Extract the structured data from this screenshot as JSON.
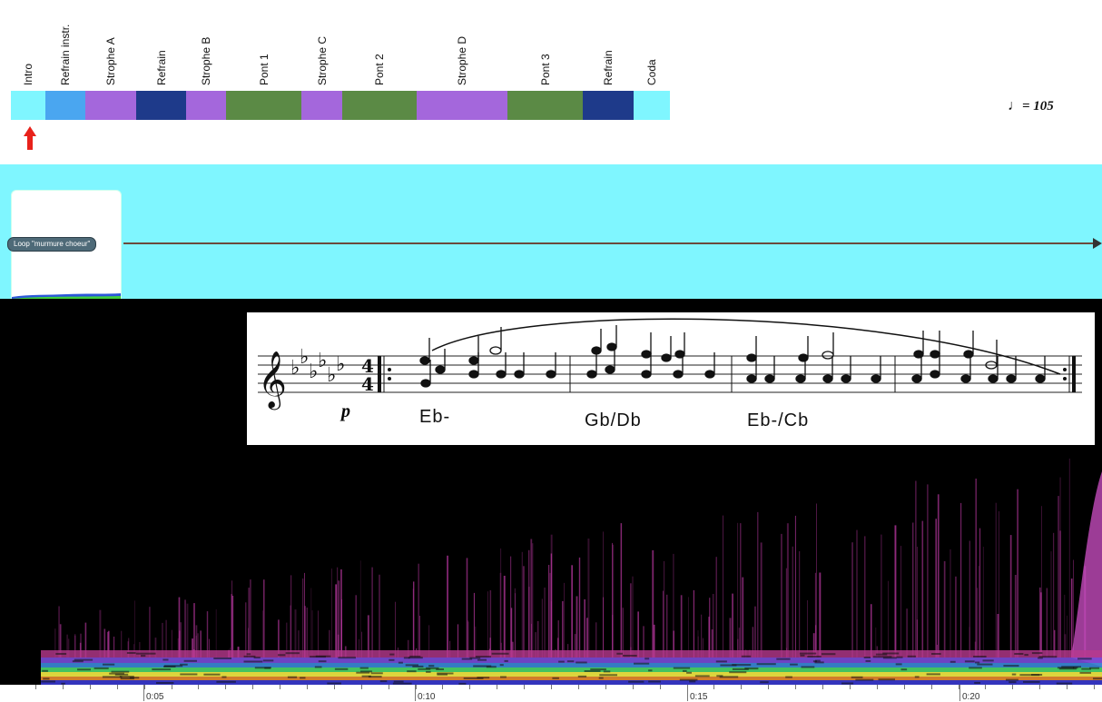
{
  "structure": {
    "segments": [
      {
        "label": "Intro",
        "color": "#7ff6ff"
      },
      {
        "label": "Refrain instr.",
        "color": "#4aa6f0"
      },
      {
        "label": "Strophe A",
        "color": "#a467dc"
      },
      {
        "label": "Refrain",
        "color": "#1e3a8a"
      },
      {
        "label": "Strophe B",
        "color": "#a467dc"
      },
      {
        "label": "Pont 1",
        "color": "#5b8a45"
      },
      {
        "label": "Strophe C",
        "color": "#a467dc"
      },
      {
        "label": "Pont 2",
        "color": "#5b8a45"
      },
      {
        "label": "Strophe D",
        "color": "#a467dc"
      },
      {
        "label": "Pont 3",
        "color": "#5b8a45"
      },
      {
        "label": "Refrain",
        "color": "#1e3a8a"
      },
      {
        "label": "Coda",
        "color": "#7ff6ff"
      }
    ],
    "tempo_value": "= 105",
    "tempo_note_icon": "quarter-note-icon",
    "playhead_icon": "red-up-arrow-icon"
  },
  "track": {
    "lane_color": "#7ff6ff",
    "loop_label": "Loop \"murmure choeur\""
  },
  "score": {
    "dynamic": "p",
    "time_signature": "4/4",
    "key_signature": "6 flats",
    "chords": [
      "Eb-",
      "Gb/Db",
      "Eb-/Cb"
    ]
  },
  "ruler": {
    "labels": [
      "0:05",
      "0:10",
      "0:15",
      "0:20"
    ]
  }
}
